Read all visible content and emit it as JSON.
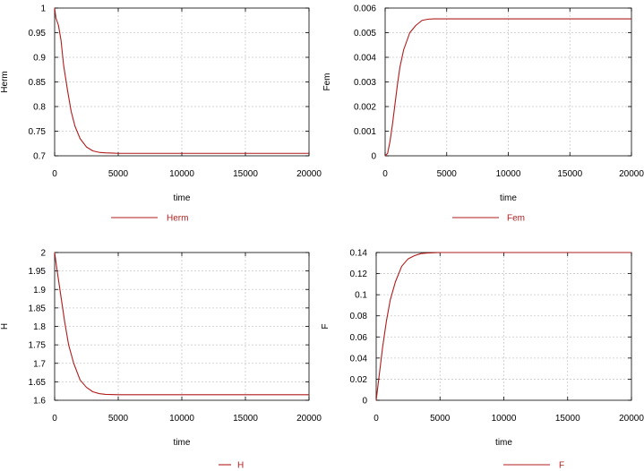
{
  "colors": {
    "series": "#b01c1c",
    "axis": "#000000",
    "grid": "#c8c8c8",
    "background": "#ffffff"
  },
  "chart_data": [
    {
      "type": "line",
      "xlabel": "time",
      "ylabel": "Herm",
      "xlim": [
        0,
        20000
      ],
      "ylim": [
        0.7,
        1.0
      ],
      "xticks": [
        "0",
        "5000",
        "10000",
        "15000",
        "20000"
      ],
      "yticks": [
        "0.7",
        "0.75",
        "0.8",
        "0.85",
        "0.9",
        "0.95",
        "1"
      ],
      "grid": true,
      "legend_position": "bottom",
      "series": [
        {
          "name": "Herm",
          "x": [
            0,
            100,
            300,
            500,
            700,
            1000,
            1300,
            1600,
            2000,
            2500,
            3000,
            3500,
            4000,
            5000,
            6000,
            8000,
            10000,
            15000,
            20000
          ],
          "y": [
            1.0,
            0.98,
            0.965,
            0.935,
            0.885,
            0.835,
            0.79,
            0.76,
            0.735,
            0.718,
            0.71,
            0.707,
            0.706,
            0.705,
            0.705,
            0.705,
            0.705,
            0.705,
            0.705
          ]
        }
      ]
    },
    {
      "type": "line",
      "xlabel": "time",
      "ylabel": "Fem",
      "xlim": [
        0,
        20000
      ],
      "ylim": [
        0,
        0.006
      ],
      "xticks": [
        "0",
        "5000",
        "10000",
        "15000",
        "20000"
      ],
      "yticks": [
        "0",
        "0.001",
        "0.002",
        "0.003",
        "0.004",
        "0.005",
        "0.006"
      ],
      "grid": true,
      "legend_position": "bottom",
      "series": [
        {
          "name": "Fem",
          "x": [
            0,
            200,
            400,
            600,
            800,
            1000,
            1200,
            1500,
            2000,
            2500,
            3000,
            3500,
            4000,
            5000,
            8000,
            12000,
            20000
          ],
          "y": [
            0,
            0.0001,
            0.0006,
            0.0013,
            0.0021,
            0.0029,
            0.0036,
            0.0043,
            0.005,
            0.0053,
            0.0055,
            0.00555,
            0.00556,
            0.00556,
            0.00556,
            0.00556,
            0.00556
          ]
        }
      ]
    },
    {
      "type": "line",
      "xlabel": "time",
      "ylabel": "H",
      "xlim": [
        0,
        20000
      ],
      "ylim": [
        1.6,
        2.0
      ],
      "xticks": [
        "0",
        "5000",
        "10000",
        "15000",
        "20000"
      ],
      "yticks": [
        "1.6",
        "1.65",
        "1.7",
        "1.75",
        "1.8",
        "1.85",
        "1.9",
        "1.95",
        "2"
      ],
      "grid": true,
      "legend_position": "bottom",
      "series": [
        {
          "name": "H",
          "x": [
            0,
            200,
            500,
            800,
            1100,
            1500,
            2000,
            2500,
            3000,
            3500,
            4000,
            5000,
            6000,
            8000,
            10000,
            15000,
            20000
          ],
          "y": [
            2.0,
            1.95,
            1.88,
            1.81,
            1.75,
            1.7,
            1.655,
            1.635,
            1.623,
            1.618,
            1.616,
            1.615,
            1.615,
            1.615,
            1.615,
            1.615,
            1.615
          ]
        }
      ]
    },
    {
      "type": "line",
      "xlabel": "time",
      "ylabel": "F",
      "xlim": [
        0,
        20000
      ],
      "ylim": [
        0,
        0.14
      ],
      "xticks": [
        "0",
        "5000",
        "10000",
        "15000",
        "20000"
      ],
      "yticks": [
        "0",
        "0.02",
        "0.04",
        "0.06",
        "0.08",
        "0.1",
        "0.12",
        "0.14"
      ],
      "grid": true,
      "legend_position": "bottom",
      "series": [
        {
          "name": "F",
          "x": [
            0,
            200,
            500,
            800,
            1100,
            1500,
            2000,
            2500,
            3000,
            3500,
            4000,
            5000,
            8000,
            12000,
            20000
          ],
          "y": [
            0,
            0.02,
            0.05,
            0.075,
            0.095,
            0.112,
            0.127,
            0.134,
            0.137,
            0.139,
            0.1395,
            0.14,
            0.14,
            0.14,
            0.14
          ]
        }
      ]
    }
  ]
}
